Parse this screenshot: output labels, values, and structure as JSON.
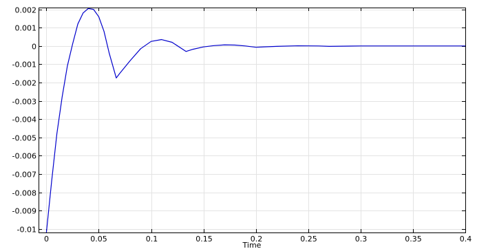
{
  "chart_data": {
    "type": "line",
    "title": "",
    "xlabel": "Time",
    "ylabel": "",
    "xlim": [
      -0.0075,
      0.4
    ],
    "ylim": [
      -0.0102,
      0.0021
    ],
    "grid": true,
    "x_ticks": [
      0,
      0.05,
      0.1,
      0.15,
      0.2,
      0.25,
      0.3,
      0.35,
      0.4
    ],
    "x_tick_labels": [
      "0",
      "0.05",
      "0.1",
      "0.15",
      "0.2",
      "0.25",
      "0.3",
      "0.35",
      "0.4"
    ],
    "y_ticks": [
      0.002,
      0.001,
      0,
      -0.001,
      -0.002,
      -0.003,
      -0.004,
      -0.005,
      -0.006,
      -0.007,
      -0.008,
      -0.009,
      -0.01
    ],
    "y_tick_labels": [
      "0.002",
      "0.001",
      "0",
      "-0.001",
      "-0.002",
      "-0.003",
      "-0.004",
      "-0.005",
      "-0.006",
      "-0.007",
      "-0.008",
      "-0.009",
      "-0.01"
    ],
    "series": [
      {
        "color": "#0000cc",
        "x": [
          0,
          0.005,
          0.01,
          0.015,
          0.02,
          0.025,
          0.03,
          0.035,
          0.04,
          0.045,
          0.05,
          0.055,
          0.06,
          0.0667,
          0.07,
          0.08,
          0.09,
          0.1,
          0.11,
          0.12,
          0.1333,
          0.14,
          0.15,
          0.16,
          0.17,
          0.18,
          0.19,
          0.2,
          0.22,
          0.24,
          0.26,
          0.27,
          0.3,
          0.35,
          0.4
        ],
        "y": [
          -0.0102,
          -0.0074,
          -0.0048,
          -0.0028,
          -0.0011,
          0.0001,
          0.0012,
          0.0018,
          0.00205,
          0.002,
          0.0016,
          0.0008,
          -0.0004,
          -0.00175,
          -0.0015,
          -0.0008,
          -0.00015,
          0.00025,
          0.00035,
          0.0002,
          -0.0003,
          -0.00018,
          -5e-05,
          2e-05,
          6e-05,
          5e-05,
          0.0,
          -7e-05,
          -2e-05,
          1e-05,
          0.0,
          -2e-05,
          0.0,
          0.0,
          0.0
        ]
      }
    ]
  }
}
